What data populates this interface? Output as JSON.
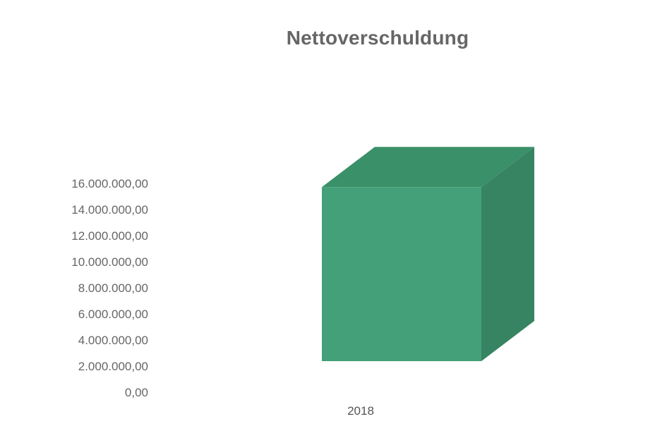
{
  "chart_data": {
    "type": "bar",
    "variant": "3d-column",
    "title": "Nettoverschuldung",
    "categories": [
      "2018"
    ],
    "series": [
      {
        "values": [
          14500000
        ]
      }
    ],
    "xlabel": "",
    "ylabel": "",
    "ylim": [
      0,
      16000000
    ],
    "yticks": [
      0,
      2000000,
      4000000,
      6000000,
      8000000,
      10000000,
      12000000,
      14000000,
      16000000
    ],
    "ytick_labels": [
      "0,00",
      "2.000.000,00",
      "4.000.000,00",
      "6.000.000,00",
      "8.000.000,00",
      "10.000.000,00",
      "12.000.000,00",
      "14.000.000,00",
      "16.000.000,00"
    ],
    "grid": false,
    "legend": "none",
    "colors": {
      "front": "#43a078",
      "top": "#3a9068",
      "side": "#368462",
      "axis_text": "#666666",
      "title": "#666666"
    }
  }
}
